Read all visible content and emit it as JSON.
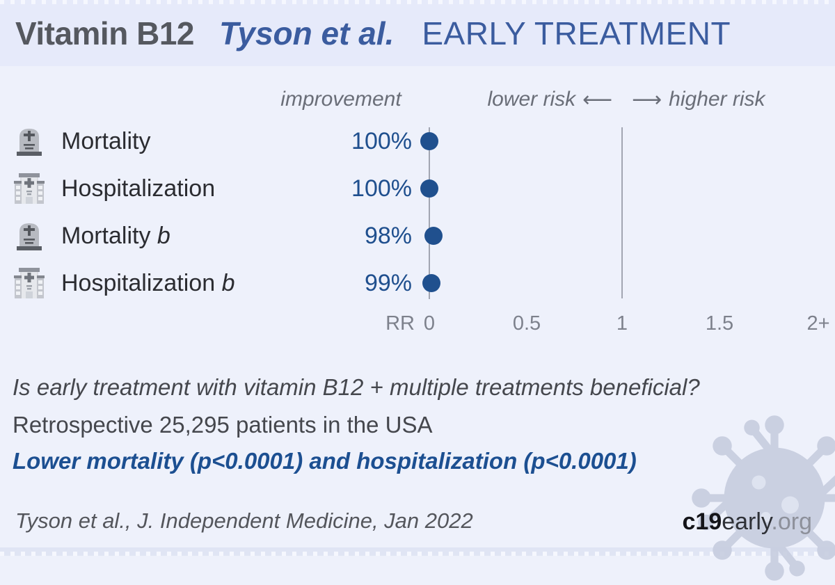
{
  "header": {
    "drug": "Vitamin B12",
    "study": "Tyson et al.",
    "stage": "EARLY TREATMENT"
  },
  "columns": {
    "improvement": "improvement",
    "lower_risk": "lower risk",
    "left_arrow": "⟵",
    "right_arrow": "⟶",
    "higher_risk": "higher risk"
  },
  "chart_data": {
    "type": "scatter",
    "title": "Vitamin B12 Tyson et al. EARLY TREATMENT forest plot",
    "xlabel": "RR",
    "x_ticks": [
      "0",
      "0.5",
      "1",
      "1.5",
      "2+"
    ],
    "x_tick_values": [
      0,
      0.5,
      1,
      1.5,
      2
    ],
    "xlim": [
      0,
      2
    ],
    "reference_lines_x": [
      0,
      1
    ],
    "legend_position": "none",
    "grid": false,
    "dot_color": "#20508e",
    "rows": [
      {
        "outcome": "Mortality",
        "suffix": "",
        "icon": "tombstone-icon",
        "improvement": "100%",
        "rr": 0.0
      },
      {
        "outcome": "Hospitalization",
        "suffix": "",
        "icon": "hospital-icon",
        "improvement": "100%",
        "rr": 0.0
      },
      {
        "outcome": "Mortality",
        "suffix": "b",
        "icon": "tombstone-icon",
        "improvement": "98%",
        "rr": 0.02
      },
      {
        "outcome": "Hospitalization",
        "suffix": "b",
        "icon": "hospital-icon",
        "improvement": "99%",
        "rr": 0.01
      }
    ]
  },
  "summary": {
    "question": "Is early treatment with vitamin B12 + multiple treatments beneficial?",
    "cohort": "Retrospective 25,295 patients in the USA",
    "conclusion": "Lower mortality (p<0.0001) and hospitalization (p<0.0001)"
  },
  "footer": {
    "citation": "Tyson et al., J. Independent Medicine, Jan 2022",
    "brand_bold": "c19",
    "brand_mid": "early",
    "brand_suffix": ".org"
  },
  "colors": {
    "accent_blue": "#1f4f8e",
    "title_blue": "#3b5c9f",
    "background": "#eef1fb",
    "band": "#e6eafa"
  }
}
